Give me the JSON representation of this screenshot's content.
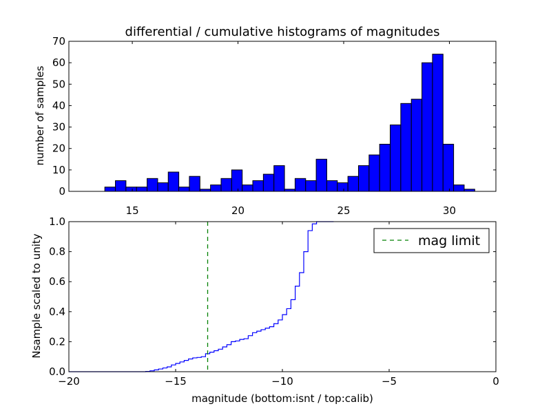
{
  "chart_data": [
    {
      "type": "bar",
      "title": "differential / cumulative histograms of magnitudes",
      "xlabel": "",
      "ylabel": "number of samples",
      "xlim": [
        12.0,
        32.2
      ],
      "ylim": [
        0,
        70
      ],
      "xticks": [
        15,
        20,
        25,
        30
      ],
      "yticks": [
        0,
        10,
        20,
        30,
        40,
        50,
        60,
        70
      ],
      "xtick_position": "bottom",
      "bar_color": "#0000ff",
      "edge_color": "#000000",
      "bins": [
        {
          "x0": 13.7,
          "x1": 14.2,
          "value": 2
        },
        {
          "x0": 14.2,
          "x1": 14.7,
          "value": 5
        },
        {
          "x0": 14.7,
          "x1": 15.2,
          "value": 2
        },
        {
          "x0": 15.2,
          "x1": 15.7,
          "value": 2
        },
        {
          "x0": 15.7,
          "x1": 16.2,
          "value": 6
        },
        {
          "x0": 16.2,
          "x1": 16.7,
          "value": 4
        },
        {
          "x0": 16.7,
          "x1": 17.2,
          "value": 9
        },
        {
          "x0": 17.2,
          "x1": 17.7,
          "value": 2
        },
        {
          "x0": 17.7,
          "x1": 18.2,
          "value": 7
        },
        {
          "x0": 18.2,
          "x1": 18.7,
          "value": 1
        },
        {
          "x0": 18.7,
          "x1": 19.2,
          "value": 3
        },
        {
          "x0": 19.2,
          "x1": 19.7,
          "value": 6
        },
        {
          "x0": 19.7,
          "x1": 20.2,
          "value": 10
        },
        {
          "x0": 20.2,
          "x1": 20.7,
          "value": 3
        },
        {
          "x0": 20.7,
          "x1": 21.2,
          "value": 5
        },
        {
          "x0": 21.2,
          "x1": 21.7,
          "value": 8
        },
        {
          "x0": 21.7,
          "x1": 22.2,
          "value": 12
        },
        {
          "x0": 22.2,
          "x1": 22.7,
          "value": 1
        },
        {
          "x0": 22.7,
          "x1": 23.2,
          "value": 6
        },
        {
          "x0": 23.2,
          "x1": 23.7,
          "value": 5
        },
        {
          "x0": 23.7,
          "x1": 24.2,
          "value": 15
        },
        {
          "x0": 24.2,
          "x1": 24.7,
          "value": 5
        },
        {
          "x0": 24.7,
          "x1": 25.2,
          "value": 4
        },
        {
          "x0": 25.2,
          "x1": 25.7,
          "value": 7
        },
        {
          "x0": 25.7,
          "x1": 26.2,
          "value": 12
        },
        {
          "x0": 26.2,
          "x1": 26.7,
          "value": 17
        },
        {
          "x0": 26.7,
          "x1": 27.2,
          "value": 22
        },
        {
          "x0": 27.2,
          "x1": 27.7,
          "value": 31
        },
        {
          "x0": 27.7,
          "x1": 28.2,
          "value": 41
        },
        {
          "x0": 28.2,
          "x1": 28.7,
          "value": 43
        },
        {
          "x0": 28.7,
          "x1": 29.2,
          "value": 60
        },
        {
          "x0": 29.2,
          "x1": 29.7,
          "value": 64
        },
        {
          "x0": 29.7,
          "x1": 30.2,
          "value": 22
        },
        {
          "x0": 30.2,
          "x1": 30.7,
          "value": 3
        },
        {
          "x0": 30.7,
          "x1": 31.2,
          "value": 1
        }
      ]
    },
    {
      "type": "line",
      "title": "",
      "xlabel": "magnitude (bottom:isnt / top:calib)",
      "ylabel": "Nsample scaled to unity",
      "xlim": [
        -20,
        0
      ],
      "ylim": [
        0,
        1.0
      ],
      "xticks": [
        -20,
        -15,
        -10,
        -5,
        0
      ],
      "xtick_labels": [
        "−20",
        "−15",
        "−10",
        "−5",
        "0"
      ],
      "yticks": [
        0.0,
        0.2,
        0.4,
        0.6,
        0.8,
        1.0
      ],
      "ytick_labels": [
        "0.0",
        "0.2",
        "0.4",
        "0.6",
        "0.8",
        "1.0"
      ],
      "legend": {
        "position": "upper right",
        "entries": [
          "mag limit"
        ]
      },
      "series": [
        {
          "style": "steps",
          "color": "#0000ff",
          "x": [
            -20.0,
            -16.4,
            -16.2,
            -16.0,
            -15.8,
            -15.6,
            -15.4,
            -15.2,
            -15.0,
            -14.8,
            -14.6,
            -14.4,
            -14.2,
            -14.0,
            -13.8,
            -13.6,
            -13.4,
            -13.2,
            -13.0,
            -12.8,
            -12.6,
            -12.4,
            -12.2,
            -12.0,
            -11.8,
            -11.6,
            -11.4,
            -11.2,
            -11.0,
            -10.8,
            -10.6,
            -10.4,
            -10.2,
            -10.0,
            -9.8,
            -9.6,
            -9.4,
            -9.2,
            -9.0,
            -8.8,
            -8.6,
            -8.4,
            -8.2,
            -8.0,
            -7.6
          ],
          "y": [
            0.0,
            0.002,
            0.006,
            0.012,
            0.018,
            0.025,
            0.032,
            0.045,
            0.055,
            0.065,
            0.075,
            0.085,
            0.092,
            0.095,
            0.1,
            0.12,
            0.13,
            0.14,
            0.15,
            0.165,
            0.18,
            0.2,
            0.205,
            0.215,
            0.22,
            0.24,
            0.26,
            0.27,
            0.28,
            0.29,
            0.3,
            0.32,
            0.345,
            0.38,
            0.42,
            0.48,
            0.57,
            0.66,
            0.8,
            0.94,
            0.985,
            1.0,
            1.0,
            1.0,
            1.0
          ]
        },
        {
          "name": "mag limit",
          "style": "dashed-vertical",
          "color": "#008000",
          "x": -13.5
        }
      ]
    }
  ]
}
